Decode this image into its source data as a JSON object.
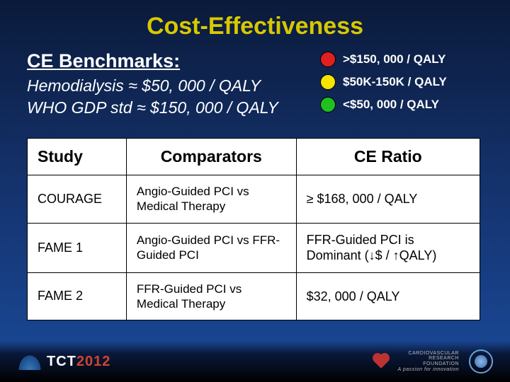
{
  "title": "Cost-Effectiveness",
  "benchmarks": {
    "heading": "CE Benchmarks:",
    "line1": "Hemodialysis ≈ $50, 000 / QALY",
    "line2": "WHO GDP std ≈ $150, 000 / QALY"
  },
  "legend": {
    "items": [
      {
        "label": ">$150, 000 / QALY",
        "color": "#e02020"
      },
      {
        "label": "$50K-150K / QALY",
        "color": "#f5e500"
      },
      {
        "label": "<$50, 000 / QALY",
        "color": "#20c020"
      }
    ]
  },
  "table": {
    "headers": {
      "study": "Study",
      "comparators": "Comparators",
      "ratio": "CE Ratio"
    },
    "rows": [
      {
        "study": "COURAGE",
        "comparators": "Angio-Guided PCI vs Medical Therapy",
        "ratio": "≥ $168, 000 / QALY"
      },
      {
        "study": "FAME 1",
        "comparators": "Angio-Guided PCI vs FFR-Guided PCI",
        "ratio": "FFR-Guided PCI is Dominant (↓$ / ↑QALY)"
      },
      {
        "study": "FAME 2",
        "comparators": "FFR-Guided PCI vs Medical Therapy",
        "ratio": "$32, 000 / QALY"
      }
    ]
  },
  "footer": {
    "tct_prefix": "TCT",
    "tct_year": "2012",
    "crf_line1": "CARDIOVASCULAR",
    "crf_line2": "RESEARCH",
    "crf_line3": "FOUNDATION",
    "crf_tag": "A passion for innovation"
  },
  "colors": {
    "title": "#d8c800",
    "bg_top": "#0a1a3a",
    "bg_bottom": "#1a4a9a",
    "table_bg": "#ffffff",
    "table_border": "#000000"
  }
}
